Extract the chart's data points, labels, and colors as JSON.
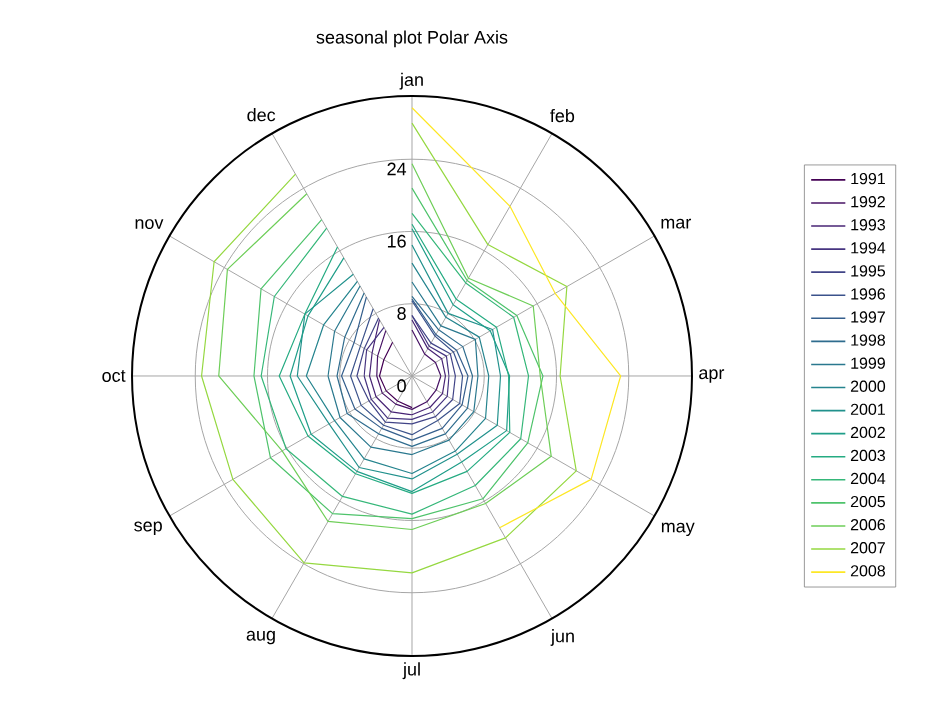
{
  "chart_data": {
    "type": "radar",
    "title": "seasonal plot Polar Axis",
    "categories": [
      "jan",
      "feb",
      "mar",
      "apr",
      "may",
      "jun",
      "jul",
      "aug",
      "sep",
      "oct",
      "nov",
      "dec"
    ],
    "ylim": [
      0,
      31
    ],
    "yticks": [
      0,
      8,
      16,
      24
    ],
    "grid": true,
    "legend": "right",
    "series": [
      {
        "name": "1991",
        "color": "#440154",
        "values": [
          null,
          null,
          null,
          null,
          null,
          null,
          3.5,
          3.2,
          3.3,
          3.6,
          3.6,
          4.3
        ]
      },
      {
        "name": "1992",
        "color": "#471365",
        "values": [
          5.1,
          2.8,
          3.0,
          3.2,
          3.1,
          3.3,
          3.7,
          3.6,
          3.8,
          3.9,
          4.4,
          5.8
        ]
      },
      {
        "name": "1993",
        "color": "#482475",
        "values": [
          6.2,
          3.5,
          3.8,
          3.7,
          3.9,
          4.0,
          4.3,
          4.6,
          4.6,
          4.7,
          5.1,
          7.2
        ]
      },
      {
        "name": "1994",
        "color": "#463480",
        "values": [
          6.7,
          3.8,
          4.4,
          4.1,
          4.5,
          4.6,
          4.8,
          5.4,
          5.2,
          5.3,
          5.8,
          6.2
        ]
      },
      {
        "name": "1995",
        "color": "#414487",
        "values": [
          6.7,
          4.2,
          4.9,
          4.8,
          5.2,
          5.2,
          5.3,
          5.9,
          5.5,
          6.1,
          6.1,
          7.4
        ]
      },
      {
        "name": "1996",
        "color": "#3b528b",
        "values": [
          8.3,
          5.1,
          5.3,
          5.6,
          6.1,
          5.7,
          6.5,
          6.3,
          6.5,
          6.8,
          6.6,
          8.6
        ]
      },
      {
        "name": "1997",
        "color": "#355f8d",
        "values": [
          8.5,
          5.3,
          5.7,
          6.2,
          6.4,
          6.7,
          7.1,
          6.7,
          7.3,
          7.8,
          7.4,
          10.1
        ]
      },
      {
        "name": "1998",
        "color": "#2f6c8e",
        "values": [
          8.8,
          5.9,
          6.5,
          6.7,
          7.1,
          7.4,
          7.8,
          7.4,
          8.3,
          8.3,
          8.6,
          10.6
        ]
      },
      {
        "name": "1999",
        "color": "#2a788e",
        "values": [
          10.4,
          6.4,
          8.1,
          7.3,
          7.9,
          8.2,
          8.7,
          9.1,
          9.2,
          9.3,
          9.9,
          11.5
        ]
      },
      {
        "name": "2000",
        "color": "#25848e",
        "values": [
          12.5,
          7.5,
          8.6,
          8.5,
          9.4,
          9.6,
          10.8,
          10.6,
          9.9,
          11.7,
          11.3,
          12.1
        ]
      },
      {
        "name": "2001",
        "color": "#21918c",
        "values": [
          14.5,
          8.0,
          10.3,
          9.8,
          10.9,
          10.0,
          11.4,
          11.7,
          10.6,
          12.7,
          13.7,
          13.0
        ]
      },
      {
        "name": "2002",
        "color": "#1f9e89",
        "values": [
          16.3,
          9.1,
          10.0,
          10.8,
          12.1,
          11.0,
          12.8,
          12.2,
          12.9,
          13.5,
          13.3,
          15.1
        ]
      },
      {
        "name": "2003",
        "color": "#25ab82",
        "values": [
          16.8,
          9.8,
          10.8,
          10.7,
          12.5,
          12.2,
          13.0,
          12.5,
          13.3,
          14.7,
          13.7,
          16.5
        ]
      },
      {
        "name": "2004",
        "color": "#35b779",
        "values": [
          18.0,
          11.9,
          13.0,
          12.9,
          13.9,
          14.0,
          15.3,
          15.4,
          16.1,
          16.7,
          17.6,
          18.9
        ]
      },
      {
        "name": "2005",
        "color": "#4ec36b",
        "values": [
          20.8,
          12.2,
          13.4,
          14.5,
          14.8,
          15.7,
          15.8,
          17.6,
          18.1,
          17.5,
          19.3,
          20.0
        ]
      },
      {
        "name": "2006",
        "color": "#6ece58",
        "values": [
          23.5,
          12.5,
          15.5,
          14.2,
          17.8,
          16.3,
          17.0,
          18.6,
          16.6,
          21.4,
          23.6,
          23.3
        ]
      },
      {
        "name": "2007",
        "color": "#95d840",
        "values": [
          28.0,
          16.8,
          19.8,
          16.4,
          21.0,
          20.7,
          21.8,
          23.9,
          22.9,
          23.3,
          25.3,
          25.8
        ]
      },
      {
        "name": "2008",
        "color": "#fde725",
        "values": [
          29.7,
          21.7,
          18.3,
          23.1,
          22.9,
          19.4,
          null,
          null,
          null,
          null,
          null,
          null
        ]
      }
    ]
  }
}
